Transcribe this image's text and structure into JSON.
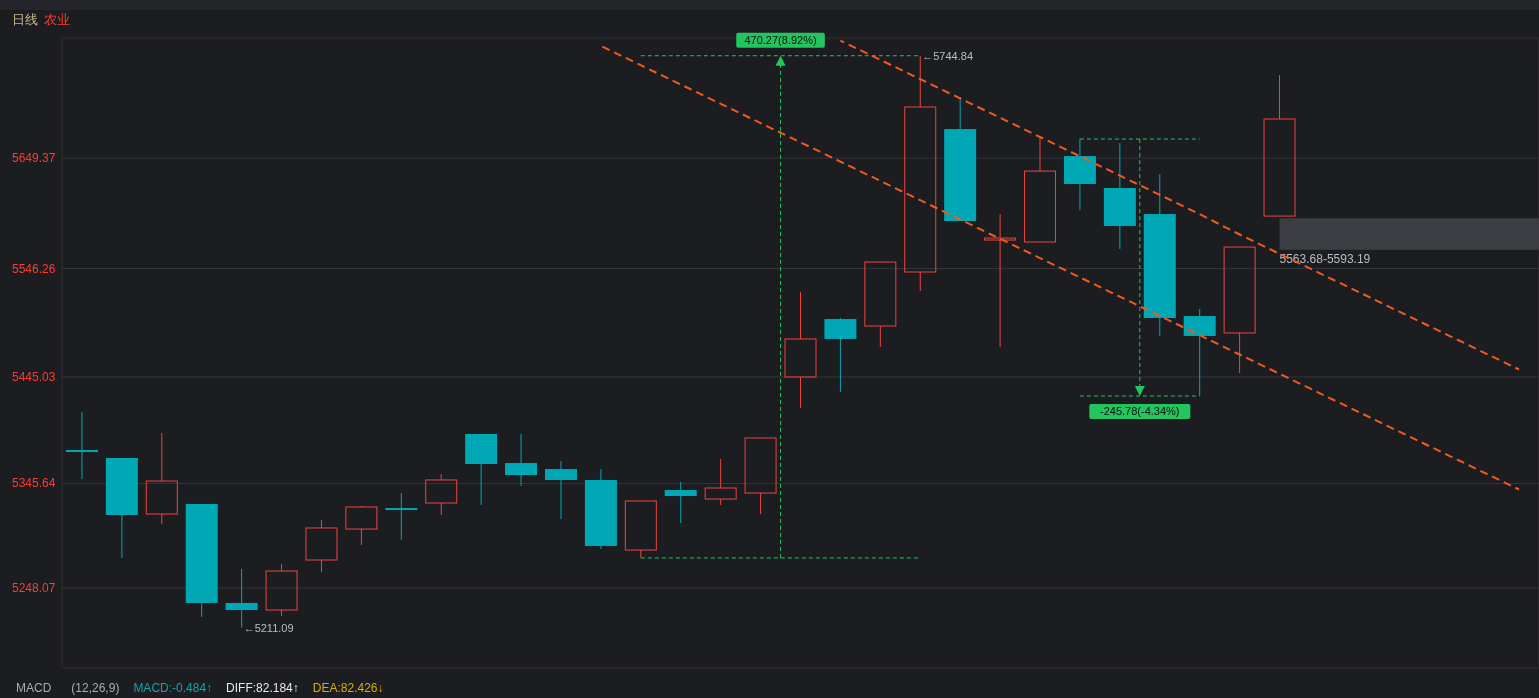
{
  "chart_data": {
    "type": "candlestick",
    "title": "日线",
    "subtitle": "农业",
    "categories": [
      null,
      null,
      null,
      null,
      null,
      null,
      null,
      null,
      null,
      null,
      null,
      null,
      null,
      null,
      null,
      null,
      null,
      null,
      null,
      null,
      null,
      null,
      null,
      null,
      null,
      null,
      null,
      null,
      null,
      null,
      null,
      null,
      null,
      null,
      null,
      null,
      null
    ],
    "ohlc": [
      [
        5376.9,
        5412.3,
        5349.8,
        5375.0
      ],
      [
        5369.4,
        5369.4,
        5276.1,
        5316.2
      ],
      [
        5317.1,
        5392.7,
        5307.8,
        5347.9
      ],
      [
        5326.5,
        5326.5,
        5221.0,
        5234.1
      ],
      [
        5234.1,
        5265.8,
        5211.09,
        5227.5
      ],
      [
        5227.5,
        5270.5,
        5221.9,
        5263.9
      ],
      [
        5274.2,
        5311.5,
        5263.0,
        5304.1
      ],
      [
        5303.1,
        5324.6,
        5288.2,
        5323.7
      ],
      [
        5322.7,
        5336.7,
        5292.9,
        5321.8
      ],
      [
        5327.4,
        5354.5,
        5316.2,
        5348.9
      ],
      [
        5391.8,
        5391.8,
        5325.5,
        5363.8
      ],
      [
        5364.7,
        5391.8,
        5343.3,
        5353.5
      ],
      [
        5359.1,
        5366.6,
        5312.5,
        5348.9
      ],
      [
        5348.9,
        5359.1,
        5284.5,
        5287.3
      ],
      [
        5283.5,
        5329.3,
        5276.1,
        5329.3
      ],
      [
        5339.5,
        5347.0,
        5308.7,
        5333.9
      ],
      [
        5331.1,
        5368.5,
        5325.5,
        5341.4
      ],
      [
        5336.7,
        5388.1,
        5317.1,
        5388.1
      ],
      [
        5445.0,
        5524.3,
        5416.1,
        5480.5
      ],
      [
        5499.1,
        5500.1,
        5431.0,
        5480.5
      ],
      [
        5492.6,
        5552.3,
        5473.0,
        5552.3
      ],
      [
        5543.0,
        5744.84,
        5525.3,
        5697.0
      ],
      [
        5676.4,
        5706.3,
        5590.6,
        5590.6
      ],
      [
        5573.8,
        5597.1,
        5473.0,
        5574.7
      ],
      [
        5571.0,
        5669.0,
        5571.0,
        5637.2
      ],
      [
        5651.2,
        5667.1,
        5600.8,
        5625.1
      ],
      [
        5621.4,
        5663.4,
        5564.4,
        5585.9
      ],
      [
        5597.1,
        5634.4,
        5483.3,
        5500.1
      ],
      [
        5501.9,
        5508.5,
        5427.3,
        5483.3
      ],
      [
        5486.1,
        5566.3,
        5448.7,
        5566.3
      ],
      [
        5595.2,
        5726.8,
        5595.2,
        5685.8
      ],
      null,
      null,
      null,
      null,
      null,
      null
    ],
    "colors": [
      "#00a8b5",
      "#00a8b5",
      "#f0433f",
      "#00a8b5",
      "#00a8b5",
      "#f0433f",
      "#f0433f",
      "#f0433f",
      "#00a8b5",
      "#f0433f",
      "#00a8b5",
      "#00a8b5",
      "#00a8b5",
      "#00a8b5",
      "#f0433f",
      "#00a8b5",
      "#f0433f",
      "#f0433f",
      "#f0433f",
      "#00a8b5",
      "#f0433f",
      "#f0433f",
      "#00a8b5",
      "#f0433f",
      "#f0433f",
      "#00a8b5",
      "#00a8b5",
      "#00a8b5",
      "#00a8b5",
      "#f0433f",
      "#f0433f",
      null,
      null,
      null,
      null,
      null,
      null
    ],
    "series": [
      {
        "type": "line",
        "color": "#f05a1e",
        "values": [
          null,
          null,
          null,
          null,
          null,
          null,
          null,
          null,
          null,
          null,
          null,
          null,
          null,
          5754,
          5736,
          5718,
          5700,
          5682,
          5664,
          5646,
          5628,
          5610,
          5592,
          5574,
          5556,
          5538,
          5520,
          5502,
          5484,
          5466,
          5448,
          5430,
          5412,
          5394,
          5376,
          5358,
          5340
        ]
      },
      {
        "type": "line",
        "color": "#f05a1e",
        "values": [
          null,
          null,
          null,
          null,
          null,
          null,
          null,
          null,
          null,
          null,
          null,
          null,
          null,
          null,
          null,
          null,
          null,
          null,
          null,
          5759,
          5741,
          5723,
          5705,
          5687,
          5669,
          5651,
          5633,
          5615,
          5597,
          5578,
          5560,
          5542,
          5524,
          5506,
          5488,
          5470,
          5452
        ]
      }
    ],
    "line_style": "dashed",
    "ylim": [
      5173.4,
      5761.4
    ],
    "yticks": [
      5248.07,
      5345.64,
      5445.03,
      5546.26,
      5649.37
    ],
    "grid": "y",
    "bands": [
      {
        "axis": "y",
        "from": 5563.68,
        "to": 5593.19,
        "label": "5563.68-5593.19",
        "color": "#3c3d42"
      }
    ],
    "annotations": [
      "470.27(8.92%)",
      "-245.78(-4.34%)",
      "←5744.84",
      "←5211.09",
      "MACD",
      "(12,26,9)",
      "MACD:-0.484↑",
      "DIFF:82.184↑",
      "DEA:82.426↓"
    ]
  }
}
